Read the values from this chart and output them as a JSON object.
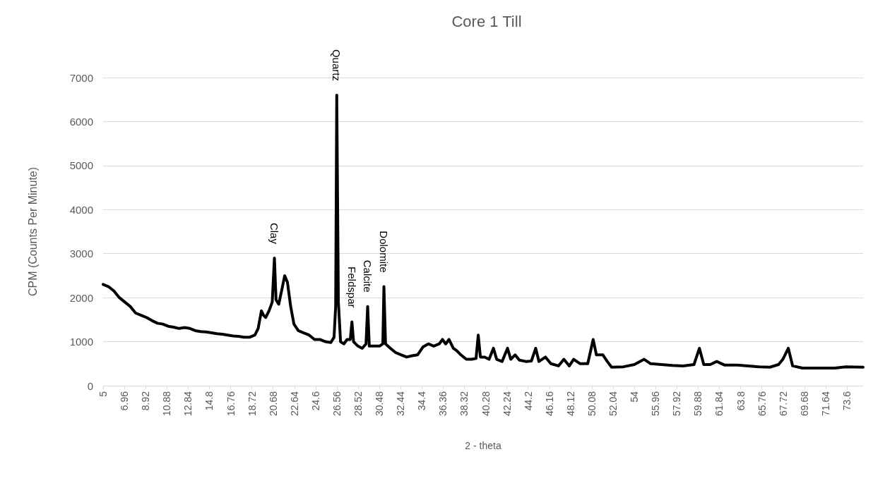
{
  "chart_data": {
    "type": "line",
    "title": "Core 1 Till",
    "xlabel": "2 - theta",
    "ylabel": "CPM (Counts Per Minute)",
    "xlim": [
      5,
      75.1
    ],
    "xticks": [
      5,
      6.96,
      8.92,
      10.88,
      12.84,
      14.8,
      16.76,
      18.72,
      20.68,
      22.64,
      24.6,
      26.56,
      28.52,
      30.48,
      32.44,
      34.4,
      36.36,
      38.32,
      40.28,
      42.24,
      44.2,
      46.16,
      48.12,
      50.08,
      52.04,
      54,
      55.96,
      57.92,
      59.88,
      61.84,
      63.8,
      65.76,
      67.72,
      69.68,
      71.64,
      73.6
    ],
    "ylim": [
      0,
      7000
    ],
    "yticks": [
      0,
      1000,
      2000,
      3000,
      4000,
      5000,
      6000,
      7000
    ],
    "grid": "y",
    "marker": "none",
    "line_style": "solid",
    "annotations": [
      {
        "text": "Clay",
        "x": 20.8,
        "y": 2900
      },
      {
        "text": "Quartz",
        "x": 26.55,
        "y": 6600
      },
      {
        "text": "Feldspar",
        "x": 27.95,
        "y": 1450
      },
      {
        "text": "Calcite",
        "x": 29.4,
        "y": 1800
      },
      {
        "text": "Dolomite",
        "x": 30.9,
        "y": 2250
      }
    ],
    "series": [
      {
        "color": "#000000",
        "x": [
          5,
          5.5,
          6,
          6.5,
          7,
          7.5,
          8,
          8.5,
          9,
          9.5,
          10,
          10.5,
          11,
          11.5,
          12,
          12.5,
          13,
          13.5,
          14,
          14.5,
          15,
          15.5,
          16,
          16.5,
          17,
          17.5,
          18,
          18.5,
          19,
          19.3,
          19.6,
          19.8,
          20,
          20.3,
          20.6,
          20.8,
          20.95,
          21.2,
          21.5,
          21.75,
          22,
          22.3,
          22.6,
          23,
          23.5,
          24,
          24.5,
          25,
          25.5,
          26,
          26.3,
          26.45,
          26.55,
          26.7,
          26.9,
          27.2,
          27.5,
          27.8,
          27.95,
          28.1,
          28.5,
          28.9,
          29.25,
          29.4,
          29.55,
          30,
          30.5,
          30.8,
          30.9,
          31.05,
          31.5,
          32,
          32.5,
          33,
          33.5,
          34,
          34.5,
          35,
          35.5,
          36,
          36.3,
          36.6,
          36.9,
          37.3,
          37.6,
          38,
          38.5,
          39,
          39.4,
          39.6,
          39.8,
          40.2,
          40.6,
          41,
          41.3,
          41.8,
          42.3,
          42.6,
          43,
          43.4,
          44,
          44.5,
          44.9,
          45.2,
          45.8,
          46.3,
          47,
          47.5,
          48,
          48.4,
          49,
          49.7,
          50.2,
          50.5,
          51.1,
          51.5,
          51.9,
          53,
          54,
          54.9,
          55.5,
          56.5,
          57.5,
          58.5,
          59.5,
          60,
          60.4,
          61,
          61.6,
          62.3,
          63.5,
          64.5,
          65.5,
          66.5,
          67.3,
          67.7,
          68.2,
          68.6,
          69.5,
          71,
          72.5,
          73.5,
          75.1
        ],
        "values": [
          2300,
          2250,
          2150,
          2000,
          1900,
          1800,
          1650,
          1600,
          1550,
          1480,
          1420,
          1400,
          1350,
          1330,
          1300,
          1320,
          1300,
          1250,
          1230,
          1220,
          1200,
          1180,
          1170,
          1150,
          1130,
          1120,
          1100,
          1100,
          1150,
          1300,
          1700,
          1600,
          1550,
          1700,
          1900,
          2900,
          1950,
          1850,
          2200,
          2500,
          2350,
          1800,
          1400,
          1250,
          1200,
          1150,
          1050,
          1050,
          1000,
          980,
          1100,
          1800,
          6600,
          1900,
          1000,
          950,
          1050,
          1050,
          1450,
          1000,
          900,
          850,
          950,
          1800,
          900,
          900,
          900,
          950,
          2250,
          950,
          850,
          750,
          700,
          650,
          680,
          700,
          880,
          950,
          900,
          950,
          1050,
          950,
          1050,
          850,
          800,
          700,
          600,
          600,
          620,
          1150,
          650,
          650,
          600,
          850,
          600,
          550,
          850,
          600,
          700,
          580,
          550,
          560,
          850,
          550,
          650,
          500,
          450,
          600,
          450,
          600,
          500,
          500,
          1050,
          700,
          700,
          550,
          420,
          430,
          480,
          600,
          500,
          480,
          460,
          450,
          480,
          850,
          480,
          480,
          550,
          470,
          470,
          450,
          430,
          420,
          480,
          600,
          850,
          450,
          400,
          400,
          400,
          430,
          420
        ]
      }
    ]
  }
}
